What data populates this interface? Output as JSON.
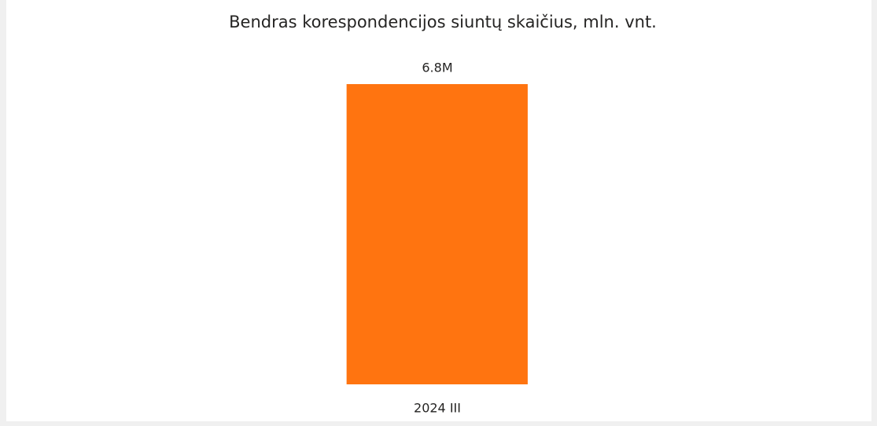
{
  "chart_data": {
    "type": "bar",
    "title": "Bendras korespondencijos siuntų skaičius, mln. vnt.",
    "categories": [
      "2024 III"
    ],
    "values": [
      6800000
    ],
    "value_labels": [
      "6.8M"
    ],
    "color": "#ff7410"
  }
}
